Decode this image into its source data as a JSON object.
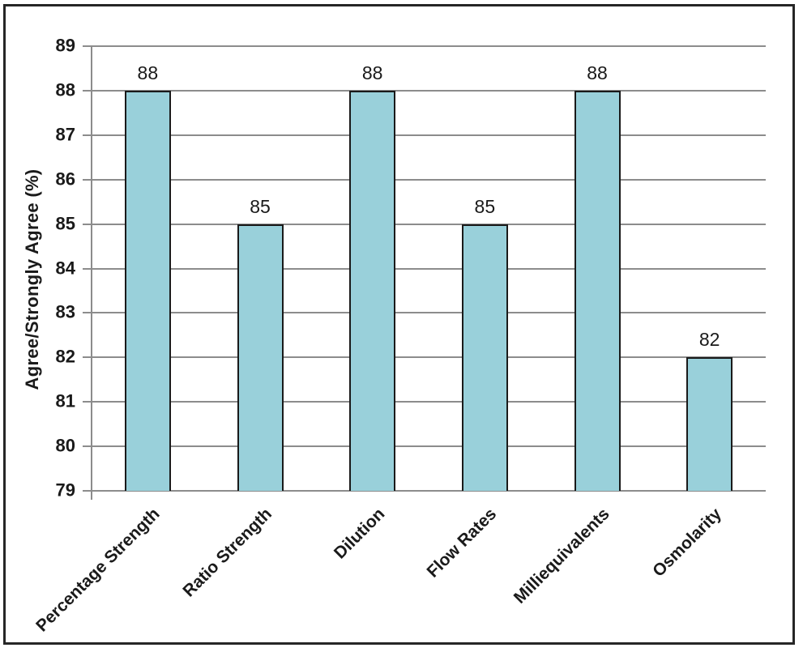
{
  "chart_data": {
    "type": "bar",
    "categories": [
      "Percentage Strength",
      "Ratio Strength",
      "Dilution",
      "Flow Rates",
      "Milliequivalents",
      "Osmolarity"
    ],
    "values": [
      88,
      85,
      88,
      85,
      88,
      82
    ],
    "data_labels": [
      "88",
      "85",
      "88",
      "85",
      "88",
      "82"
    ],
    "title": "",
    "xlabel": "",
    "ylabel": "Agree/Strongly Agree (%)",
    "ylim": [
      79,
      89
    ],
    "ytick_step": 1,
    "ytick_labels": [
      "79",
      "80",
      "81",
      "82",
      "83",
      "84",
      "85",
      "86",
      "87",
      "88",
      "89"
    ],
    "grid": true,
    "legend_position": "none",
    "colors": {
      "bar_fill": "#99D0DA",
      "bar_border": "#1A1A1A",
      "gridline": "#8C8C8C",
      "axis_line": "#8C8C8C",
      "text": "#1A1A1A",
      "frame_border": "#262626",
      "background": "#FFFFFF"
    }
  }
}
